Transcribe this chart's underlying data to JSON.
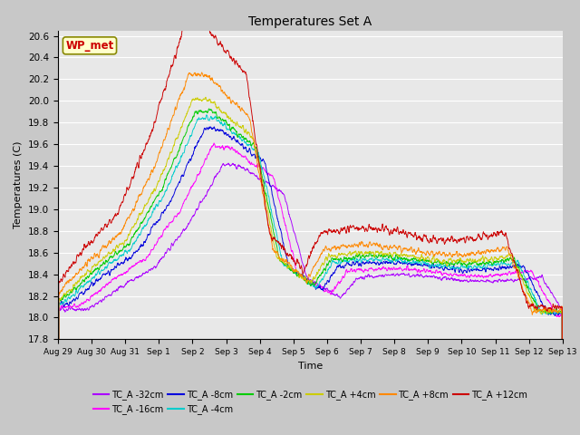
{
  "title": "Temperatures Set A",
  "xlabel": "Time",
  "ylabel": "Temperatures (C)",
  "ylim": [
    17.8,
    20.65
  ],
  "fig_bg": "#c8c8c8",
  "plot_bg": "#e8e8e8",
  "series": [
    {
      "label": "TC_A -32cm",
      "color": "#aa00ff"
    },
    {
      "label": "TC_A -16cm",
      "color": "#ff00ff"
    },
    {
      "label": "TC_A -8cm",
      "color": "#0000dd"
    },
    {
      "label": "TC_A -4cm",
      "color": "#00cccc"
    },
    {
      "label": "TC_A -2cm",
      "color": "#00cc00"
    },
    {
      "label": "TC_A +4cm",
      "color": "#cccc00"
    },
    {
      "label": "TC_A +8cm",
      "color": "#ff8800"
    },
    {
      "label": "TC_A +12cm",
      "color": "#cc0000"
    }
  ],
  "xtick_labels": [
    "Aug 29",
    "Aug 30",
    "Aug 31",
    "Sep 1",
    "Sep 2",
    "Sep 3",
    "Sep 4",
    "Sep 5",
    "Sep 6",
    "Sep 7",
    "Sep 8",
    "Sep 9",
    "Sep 10",
    "Sep 11",
    "Sep 12",
    "Sep 13"
  ],
  "ytick_values": [
    17.8,
    18.0,
    18.2,
    18.4,
    18.6,
    18.8,
    19.0,
    19.2,
    19.4,
    19.6,
    19.8,
    20.0,
    20.2,
    20.4,
    20.6
  ],
  "wp_met_label": "WP_met",
  "wp_met_color": "#cc0000",
  "wp_met_bg": "#ffffcc",
  "wp_met_border": "#888800"
}
